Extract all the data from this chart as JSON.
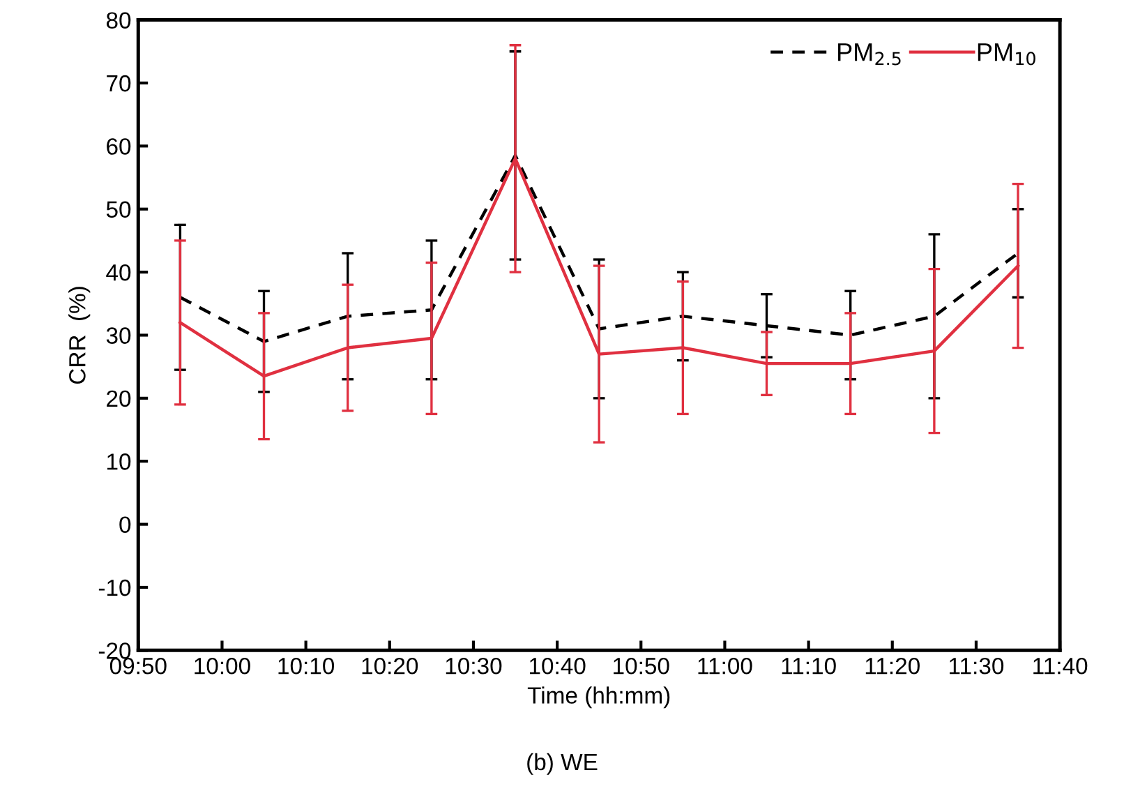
{
  "chart_data": {
    "type": "line",
    "xlabel": "Time (hh:mm)",
    "ylabel": "CRR  (%)",
    "annotations": [
      "(b) WE"
    ],
    "x": [
      9.9167,
      10.0833,
      10.25,
      10.4167,
      10.5833,
      10.75,
      10.9167,
      11.0833,
      11.25,
      11.4167,
      11.5833
    ],
    "series": [
      {
        "name": "PM$_{2.5}$",
        "color": "#000000",
        "line_style": "dashed",
        "values": [
          36,
          29,
          33,
          34,
          58.5,
          31,
          33,
          31.5,
          30,
          33,
          43
        ],
        "errors": [
          11.5,
          8,
          10,
          11,
          16.5,
          11,
          7,
          5,
          7,
          13,
          7
        ]
      },
      {
        "name": "PM$_{10}$",
        "color": "#e03040",
        "line_style": "solid",
        "values": [
          32,
          23.5,
          28,
          29.5,
          58,
          27,
          28,
          25.5,
          25.5,
          27.5,
          41
        ],
        "errors": [
          13,
          10,
          10,
          12,
          18,
          14,
          10.5,
          5,
          8,
          13,
          13
        ]
      }
    ],
    "xlim": [
      9.8333,
      11.6667
    ],
    "xticks": [
      {
        "value": 9.8333,
        "label": "09:50"
      },
      {
        "value": 10.0,
        "label": "10:00"
      },
      {
        "value": 10.1667,
        "label": "10:10"
      },
      {
        "value": 10.3333,
        "label": "10:20"
      },
      {
        "value": 10.5,
        "label": "10:30"
      },
      {
        "value": 10.6667,
        "label": "10:40"
      },
      {
        "value": 10.8333,
        "label": "10:50"
      },
      {
        "value": 11.0,
        "label": "11:00"
      },
      {
        "value": 11.1667,
        "label": "11:10"
      },
      {
        "value": 11.3333,
        "label": "11:20"
      },
      {
        "value": 11.5,
        "label": "11:30"
      },
      {
        "value": 11.6667,
        "label": "11:40"
      }
    ],
    "ylim": [
      -20,
      80
    ],
    "yticks": [
      -20,
      -10,
      0,
      10,
      20,
      30,
      40,
      50,
      60,
      70,
      80
    ],
    "grid": false,
    "legend": "top right",
    "marker": "none"
  }
}
